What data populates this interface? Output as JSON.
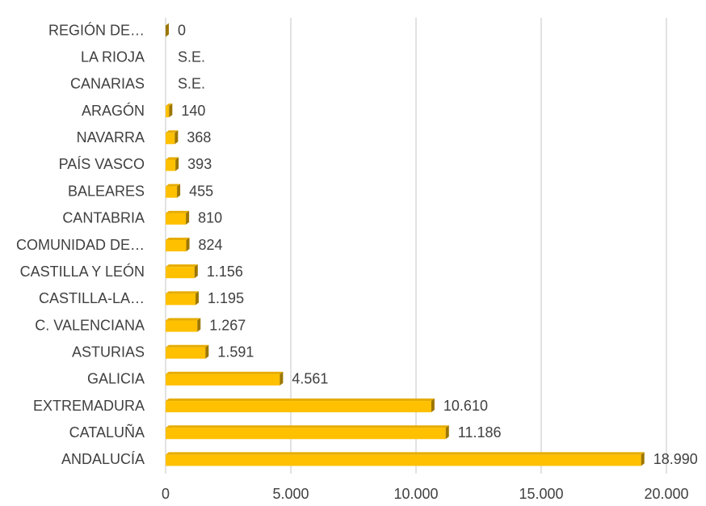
{
  "chart_data": {
    "type": "bar",
    "orientation": "horizontal",
    "categories": [
      "ANDALUCÍA",
      "CATALUÑA",
      "EXTREMADURA",
      "GALICIA",
      "ASTURIAS",
      "C. VALENCIANA",
      "CASTILLA-LA…",
      "CASTILLA Y LEÓN",
      "COMUNIDAD DE…",
      "CANTABRIA",
      "BALEARES",
      "PAÍS VASCO",
      "NAVARRA",
      "ARAGÓN",
      "CANARIAS",
      "LA RIOJA",
      "REGIÓN DE…"
    ],
    "values": [
      18990,
      11186,
      10610,
      4561,
      1591,
      1267,
      1195,
      1156,
      824,
      810,
      455,
      393,
      368,
      140,
      null,
      null,
      0
    ],
    "value_labels": [
      "18.990",
      "11.186",
      "10.610",
      "4.561",
      "1.591",
      "1.267",
      "1.195",
      "1.156",
      "824",
      "810",
      "455",
      "393",
      "368",
      "140",
      "S.E.",
      "S.E.",
      "0"
    ],
    "color": "#ffc000",
    "xlim": [
      0,
      20000
    ],
    "xticks": [
      0,
      {
        "value": 5000,
        "label": "5.000"
      },
      {
        "value": 10000,
        "label": "10.000"
      },
      {
        "value": 15000,
        "label": "15.000"
      },
      {
        "value": 20000,
        "label": "20.000"
      }
    ],
    "grid": true
  }
}
